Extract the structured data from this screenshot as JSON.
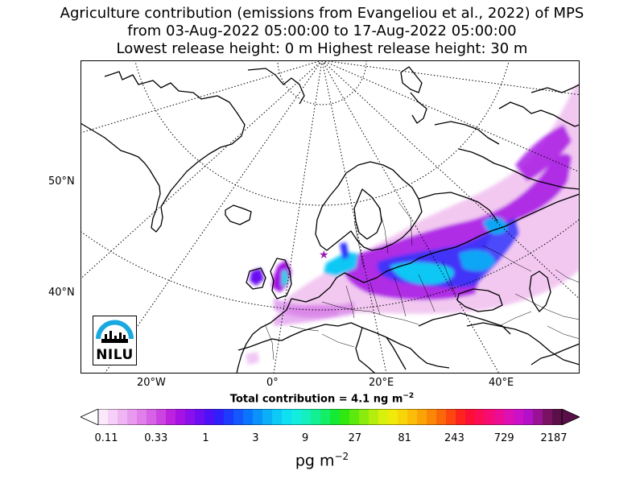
{
  "title": {
    "line1": "Agriculture contribution (emissions from Evangeliou et al., 2022) of MPS",
    "line2": "from 03-Aug-2022 05:00:00 to 17-Aug-2022 05:00:00",
    "line3": "Lowest release height: 0 m      Highest release height: 30 m"
  },
  "map": {
    "lat_labels": [
      "50°N",
      "40°N"
    ],
    "lon_labels": [
      "20°W",
      "0°",
      "20°E",
      "40°E"
    ],
    "release_site_marker": "star",
    "colors": {
      "land_outline": "#000000",
      "graticule": "#000000",
      "ocean": "#ffffff",
      "marker": "#9b1fb0"
    }
  },
  "logo": {
    "text": "NILU",
    "color_arc": "#1aa8e0"
  },
  "total": {
    "prefix": "Total contribution = 4.1 ng m",
    "exponent": "−2"
  },
  "colorbar": {
    "tick_labels": [
      "0.11",
      "0.33",
      "1",
      "3",
      "9",
      "27",
      "81",
      "243",
      "729",
      "2187"
    ],
    "units_base": "pg m",
    "units_exp": "−2",
    "colors": [
      "#fbe9fb",
      "#f5cff7",
      "#efb5f3",
      "#e89aef",
      "#e07eea",
      "#d662e6",
      "#cb44e2",
      "#bd22df",
      "#a611e4",
      "#8b0fec",
      "#6d0ef2",
      "#4d10f7",
      "#2f20fb",
      "#1d3bfd",
      "#1357fd",
      "#0b74fc",
      "#0a92fa",
      "#0baff8",
      "#0cc9f6",
      "#0ee0f2",
      "#12eddf",
      "#14efbd",
      "#13ef93",
      "#14ee66",
      "#14ea33",
      "#2ee80f",
      "#5ce90d",
      "#8beb0d",
      "#b5ee0d",
      "#d9f00c",
      "#f0ea0b",
      "#f7d509",
      "#fbbd07",
      "#fba306",
      "#fb8706",
      "#fb6809",
      "#fd4510",
      "#fd241d",
      "#fc0f36",
      "#fb0c54",
      "#f60c74",
      "#ec0d95",
      "#de0fb3",
      "#cc10c6",
      "#b410c8",
      "#991295",
      "#7a1264",
      "#5a0f48"
    ]
  }
}
